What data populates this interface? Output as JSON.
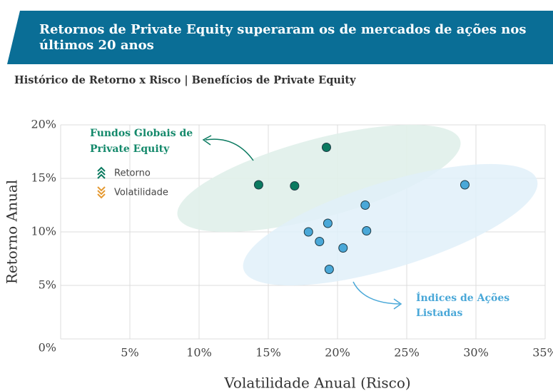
{
  "chart_data": {
    "type": "scatter",
    "title_lines": [
      "Retornos de Private Equity superaram os de mercados de ações nos",
      "últimos 20 anos"
    ],
    "subtitle": "Histórico de Retorno x Risco | Benefícios de Private Equity",
    "x_label": "Volatilidade Anual (Risco)",
    "y_label": "Retorno Anual",
    "xlim": [
      0,
      35
    ],
    "ylim": [
      0,
      20
    ],
    "xticks": [
      {
        "value": 5,
        "label": "5%"
      },
      {
        "value": 10,
        "label": "10%"
      },
      {
        "value": 15,
        "label": "15%"
      },
      {
        "value": 20,
        "label": "20%"
      },
      {
        "value": 25,
        "label": "25%"
      },
      {
        "value": 30,
        "label": "30%"
      },
      {
        "value": 35,
        "label": "35%"
      }
    ],
    "yticks": [
      {
        "value": 0,
        "label": "0%"
      },
      {
        "value": 5,
        "label": "5%"
      },
      {
        "value": 10,
        "label": "10%"
      },
      {
        "value": 15,
        "label": "15%"
      },
      {
        "value": 20,
        "label": "20%"
      }
    ],
    "grid": true,
    "legend": [
      "Retorno",
      "Volatilidade"
    ],
    "series": [
      {
        "name_lines": [
          "Fundos Globais de",
          "Private Equity"
        ],
        "color": "#0b7a60",
        "x": [
          14.3,
          16.9,
          19.2
        ],
        "values": [
          14.4,
          14.3,
          17.9
        ]
      },
      {
        "name_lines": [
          "Índices de Ações",
          "Listadas"
        ],
        "color": "#4aa8d8",
        "x": [
          29.2,
          22.0,
          22.1,
          19.3,
          17.9,
          18.7,
          20.4,
          19.4
        ],
        "values": [
          14.4,
          12.5,
          10.1,
          10.8,
          10.0,
          9.1,
          8.5,
          6.5
        ]
      }
    ]
  }
}
